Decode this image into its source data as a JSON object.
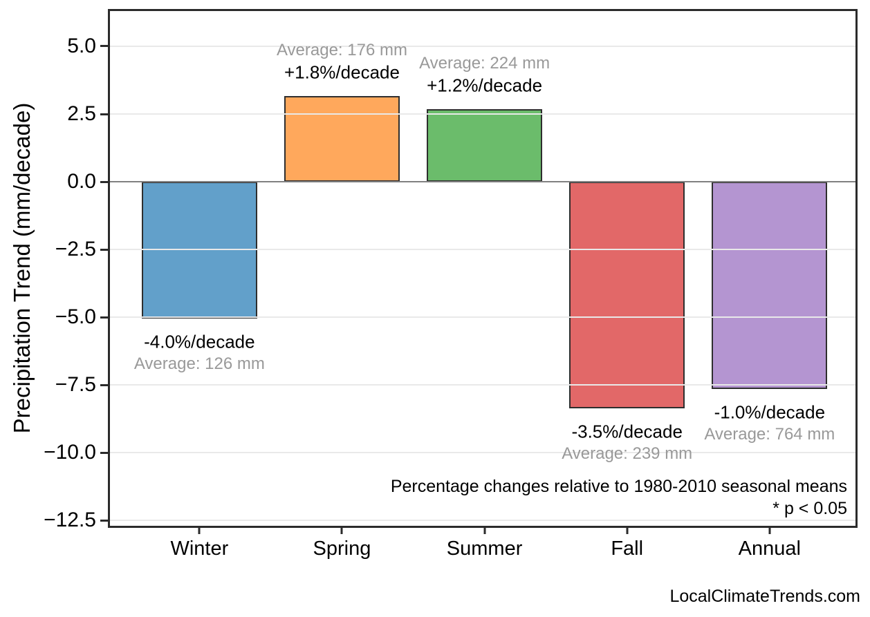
{
  "chart_data": {
    "type": "bar",
    "title": "",
    "categories": [
      "Winter",
      "Spring",
      "Summer",
      "Fall",
      "Annual"
    ],
    "values": [
      -5.04,
      3.17,
      2.69,
      -8.37,
      -7.64
    ],
    "bar_pct_labels": [
      "-4.0%/decade",
      "+1.8%/decade",
      "+1.2%/decade",
      "-3.5%/decade",
      "-1.0%/decade"
    ],
    "bar_avg_labels": [
      "Average: 126 mm",
      "Average: 176 mm",
      "Average: 224 mm",
      "Average: 239 mm",
      "Average: 764 mm"
    ],
    "bar_colors": [
      "#62A0CA",
      "#FFA85C",
      "#6BBC6B",
      "#E26868",
      "#B495D1"
    ],
    "bar_edge_color": "#2e2e2e",
    "ylabel": "Precipitation Trend (mm/decade)",
    "xlabel": "",
    "ylim": [
      -12.7,
      6.3
    ],
    "yticks": [
      5.0,
      2.5,
      0.0,
      -2.5,
      -5.0,
      -7.5,
      -10.0,
      -12.5
    ],
    "ytick_labels": [
      "5.0",
      "2.5",
      "0.0",
      "−2.5",
      "−5.0",
      "−7.5",
      "−10.0",
      "−12.5"
    ],
    "grid": true,
    "zero_line": true,
    "legend": null,
    "annotations": [
      "Percentage changes relative to 1980-2010 seasonal means",
      "* p < 0.05"
    ],
    "watermark": "LocalClimateTrends.com",
    "colors": {
      "grid": "#e9e9e9",
      "zero_line": "#808080",
      "spine": "#2b2b2b",
      "pct_label": "#000000",
      "avg_label": "#999999"
    }
  }
}
